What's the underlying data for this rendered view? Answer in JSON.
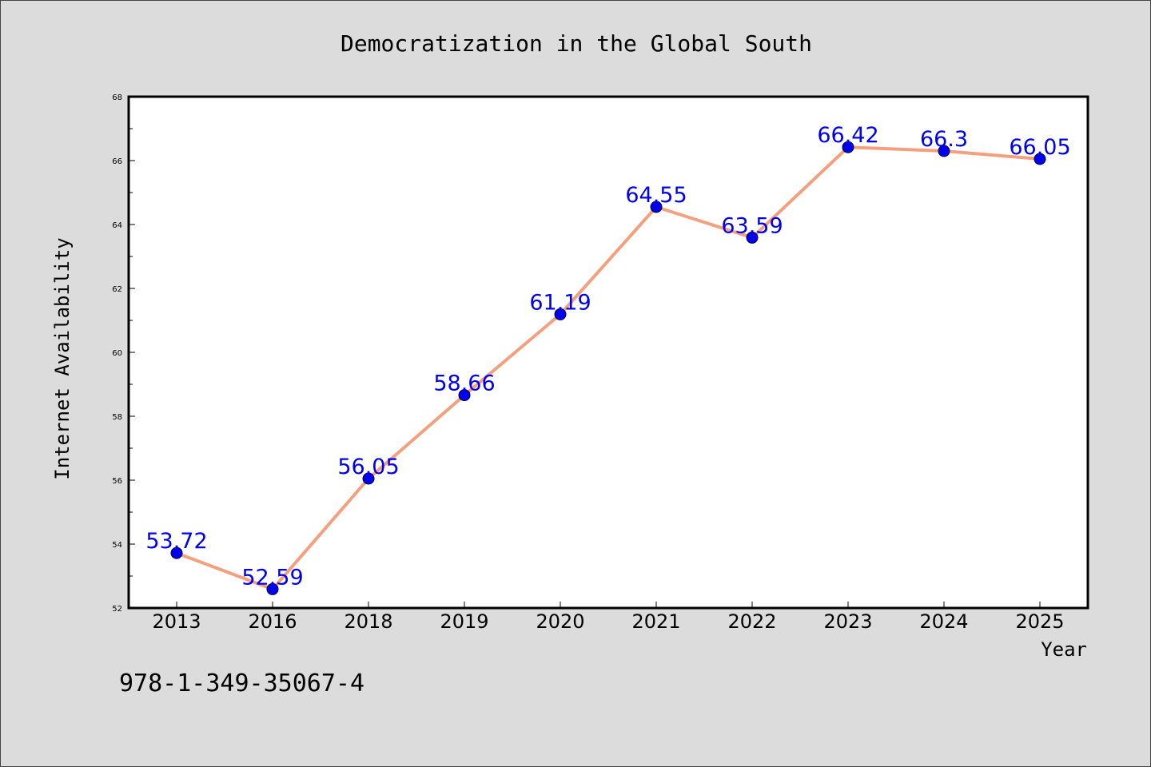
{
  "chart_data": {
    "type": "line",
    "title": "Democratization in the Global South",
    "xlabel": "Year",
    "ylabel": "Internet Availability",
    "categories": [
      "2013",
      "2016",
      "2018",
      "2019",
      "2020",
      "2021",
      "2022",
      "2023",
      "2024",
      "2025"
    ],
    "series": [
      {
        "values": [
          53.72,
          52.59,
          56.05,
          58.66,
          61.19,
          64.55,
          63.59,
          66.42,
          66.3,
          66.05
        ],
        "line_color": "#f4a07e",
        "marker_color": "#0000ee"
      }
    ],
    "data_labels": [
      "53.72",
      "52.59",
      "56.05",
      "58.66",
      "61.19",
      "64.55",
      "63.59",
      "66.42",
      "66.3",
      "66.05"
    ],
    "data_label_color": "#0000ee",
    "ylim": [
      52,
      68
    ],
    "yticks": [
      "52",
      "54",
      "56",
      "58",
      "60",
      "62",
      "64",
      "66",
      "68"
    ],
    "grid": false,
    "legend": "none"
  },
  "footer_text": "978-1-349-35067-4",
  "colors": {
    "background": "#dcdcdc",
    "plot_background": "#ffffff",
    "axis": "#000000",
    "text": "#000000"
  }
}
